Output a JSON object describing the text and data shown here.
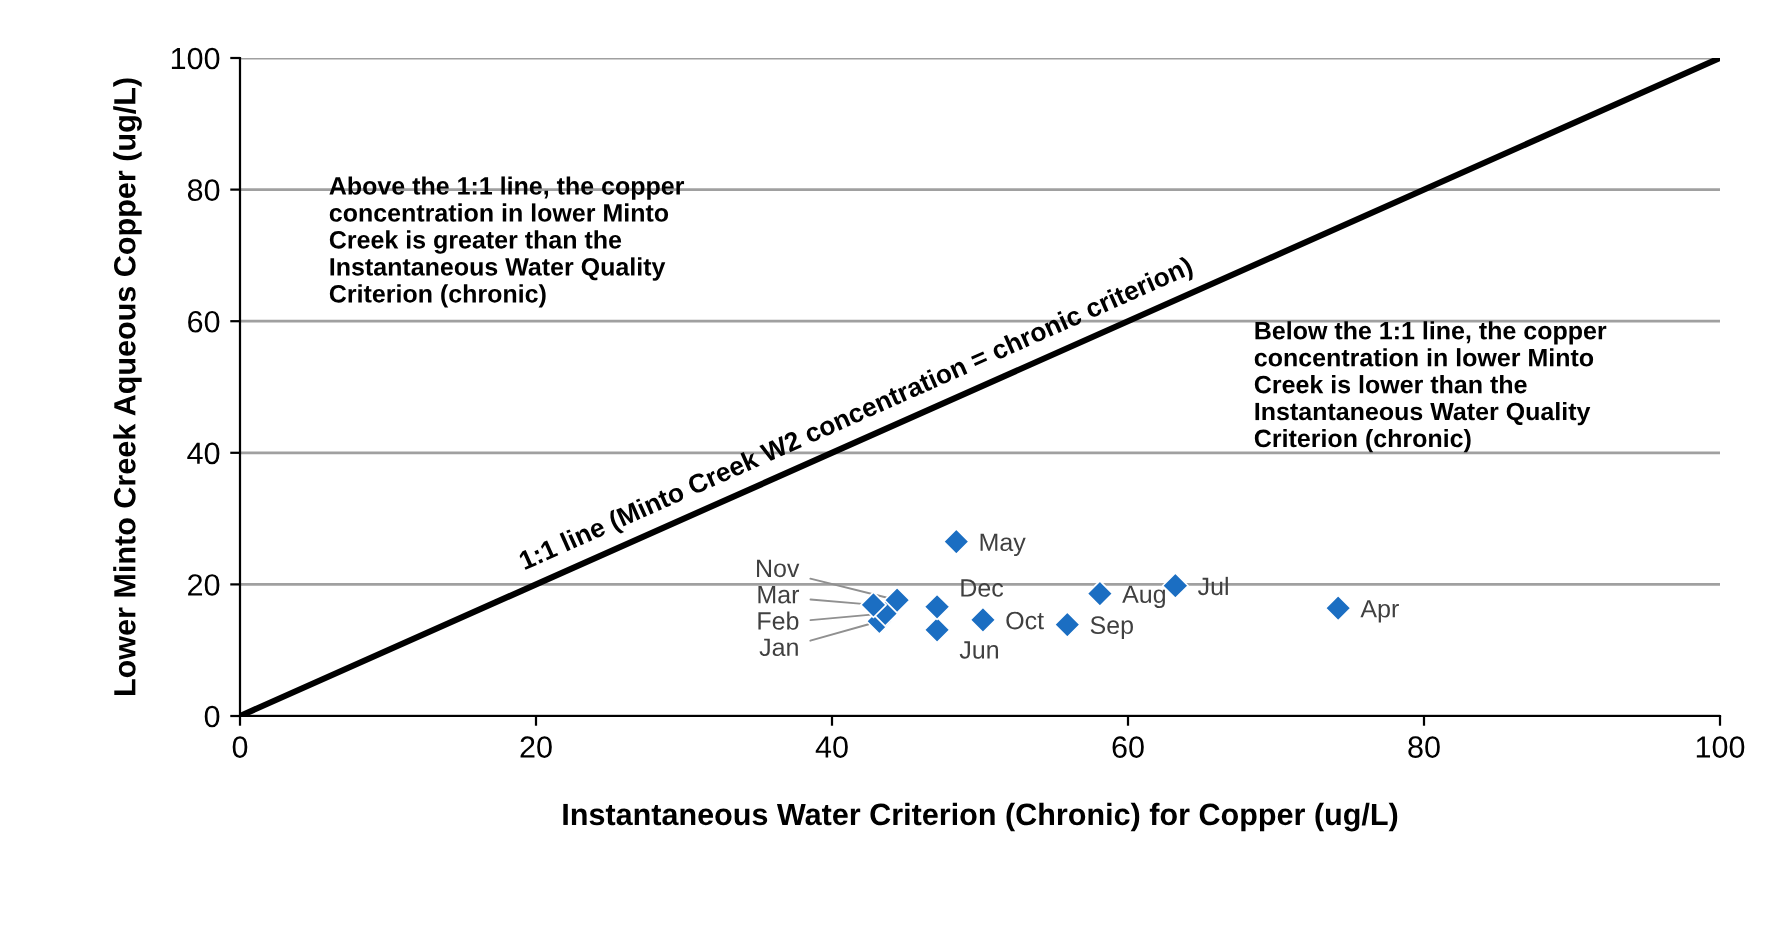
{
  "chart_data": {
    "type": "scatter",
    "xlabel": "Instantaneous Water Criterion (Chronic) for Copper (ug/L)",
    "ylabel": "Lower Minto Creek Aqueous Copper (ug/L)",
    "series": [
      {
        "type": "line",
        "color": "#000000",
        "x": [
          0,
          100
        ],
        "values": [
          0,
          100
        ],
        "marker": "none",
        "line_style": "solid"
      },
      {
        "type": "scatter",
        "color": "#1b6ec2",
        "marker": "diamond",
        "x": [
          43.2,
          43.6,
          42.8,
          74.2,
          48.4,
          47.1,
          63.2,
          58.1,
          55.9,
          50.2,
          44.4,
          47.1
        ],
        "values": [
          14.4,
          15.6,
          16.9,
          16.4,
          26.5,
          13.1,
          19.8,
          18.6,
          13.9,
          14.6,
          17.6,
          16.6
        ],
        "value_labels": [
          "Jan",
          "Feb",
          "Mar",
          "Apr",
          "May",
          "Jun",
          "Jul",
          "Aug",
          "Sep",
          "Oct",
          "Nov",
          "Dec"
        ]
      }
    ],
    "annotations": [
      {
        "text": "1:1 line (Minto Creek W2 concentration = chronic criterion)",
        "x": 42,
        "y": 44
      },
      "Above the 1:1 line, the copper concentration in lower Minto Creek is greater than the Instantaneous Water Quality Criterion (chronic)",
      "Below the 1:1 line, the copper concentration in lower Minto Creek is lower than the Instantaneous Water Quality Criterion (chronic)"
    ],
    "xlim": [
      0,
      100
    ],
    "ylim": [
      0,
      100
    ],
    "xticks": [
      0,
      20,
      40,
      60,
      80,
      100
    ],
    "yticks": [
      0,
      20,
      40,
      60,
      80,
      100
    ],
    "grid": "y",
    "legend": false
  }
}
